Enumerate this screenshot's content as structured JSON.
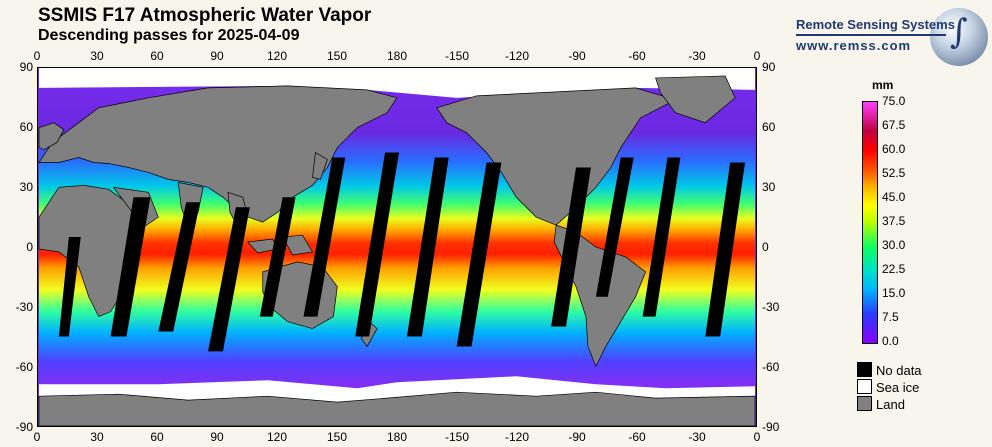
{
  "title": "SSMIS F17 Atmospheric Water Vapor",
  "subtitle": "Descending passes for 2025-04-09",
  "logo": {
    "name": "Remote Sensing Systems",
    "url": "www.remss.com"
  },
  "lon_ticks": [
    "0",
    "30",
    "60",
    "90",
    "120",
    "150",
    "180",
    "-150",
    "-120",
    "-90",
    "-60",
    "-30",
    "0"
  ],
  "lat_ticks": [
    "90",
    "60",
    "30",
    "0",
    "-30",
    "-60",
    "-90"
  ],
  "colorbar": {
    "unit": "mm",
    "labels": [
      "75.0",
      "67.5",
      "60.0",
      "52.5",
      "45.0",
      "37.5",
      "30.0",
      "22.5",
      "15.0",
      "7.5",
      "0.0"
    ]
  },
  "legend": [
    {
      "label": "No data",
      "color": "#000000"
    },
    {
      "label": "Sea ice",
      "color": "#ffffff"
    },
    {
      "label": "Land",
      "color": "#808080"
    }
  ]
}
